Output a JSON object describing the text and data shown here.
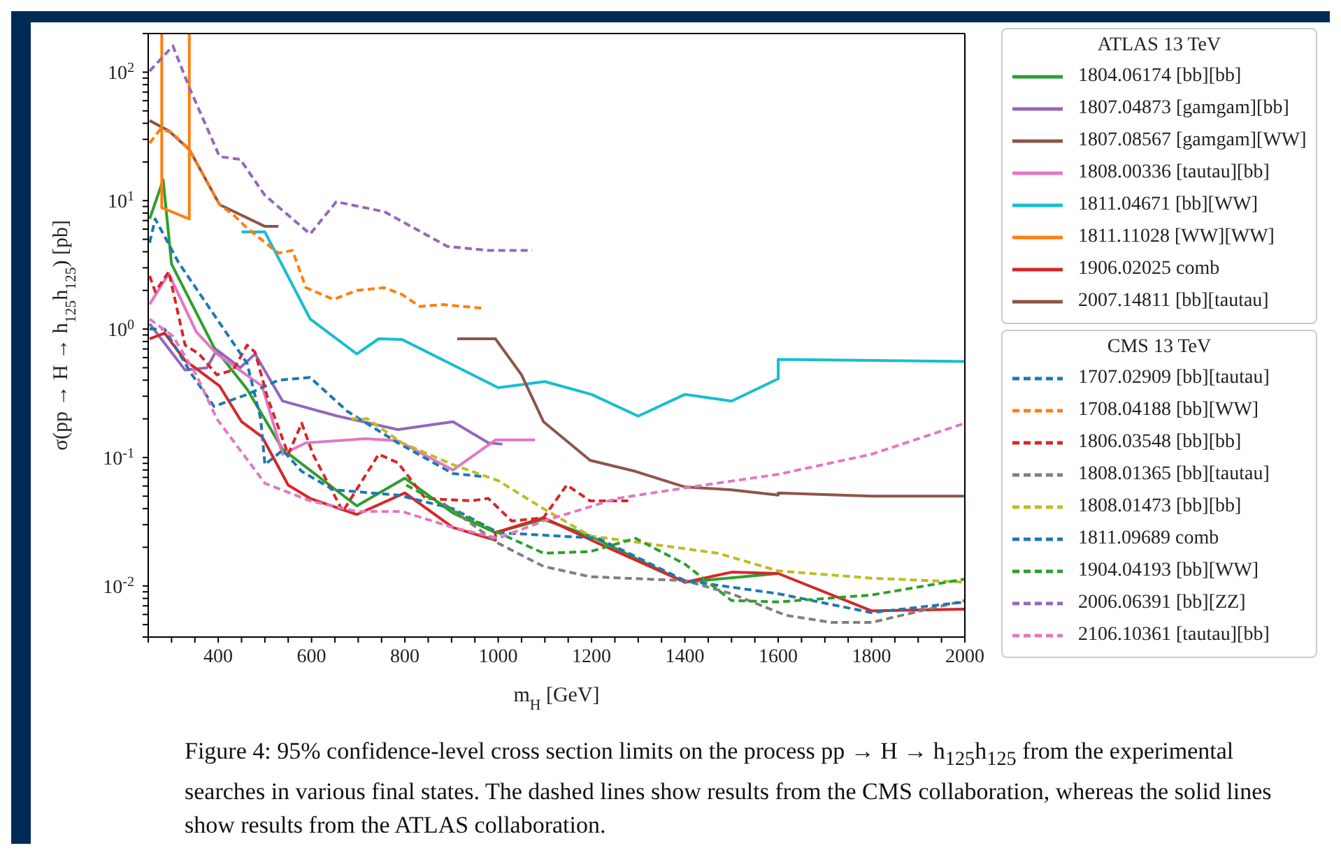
{
  "chart_data": {
    "type": "line",
    "xlabel": "m$_{H}$ [GeV]",
    "ylabel": "σ(pp → H → h$_{125}$h$_{125}$) [pb]",
    "log": "y",
    "marker": "none",
    "legend": "right",
    "legend_title": [
      "ATLAS 13 TeV",
      "CMS 13 TeV"
    ],
    "xlim": [
      250,
      2000
    ],
    "ylim": [
      0.004,
      200
    ],
    "xticks": [
      {
        "value": 250,
        "label": null
      },
      {
        "value": 300,
        "label": null
      },
      {
        "value": 350,
        "label": null
      },
      400,
      {
        "value": 450,
        "label": null
      },
      {
        "value": 500,
        "label": null
      },
      {
        "value": 550,
        "label": null
      },
      600,
      {
        "value": 650,
        "label": null
      },
      {
        "value": 700,
        "label": null
      },
      {
        "value": 750,
        "label": null
      },
      800,
      {
        "value": 850,
        "label": null
      },
      {
        "value": 900,
        "label": null
      },
      {
        "value": 950,
        "label": null
      },
      1000,
      {
        "value": 1050,
        "label": null
      },
      {
        "value": 1100,
        "label": null
      },
      {
        "value": 1150,
        "label": null
      },
      1200,
      {
        "value": 1250,
        "label": null
      },
      {
        "value": 1300,
        "label": null
      },
      {
        "value": 1350,
        "label": null
      },
      1400,
      {
        "value": 1450,
        "label": null
      },
      {
        "value": 1500,
        "label": null
      },
      {
        "value": 1550,
        "label": null
      },
      1600,
      {
        "value": 1650,
        "label": null
      },
      {
        "value": 1700,
        "label": null
      },
      {
        "value": 1750,
        "label": null
      },
      1800,
      {
        "value": 1850,
        "label": null
      },
      {
        "value": 1900,
        "label": null
      },
      {
        "value": 1950,
        "label": null
      },
      2000
    ],
    "yticks": [
      {
        "value": 0.004,
        "label": null
      },
      {
        "value": 0.005,
        "label": null
      },
      {
        "value": 0.006,
        "label": null
      },
      {
        "value": 0.007,
        "label": null
      },
      {
        "value": 0.008,
        "label": null
      },
      {
        "value": 0.009,
        "label": null
      },
      {
        "value": 0.01,
        "label": "10$^{-2}$"
      },
      {
        "value": 0.02,
        "label": null
      },
      {
        "value": 0.03,
        "label": null
      },
      {
        "value": 0.04,
        "label": null
      },
      {
        "value": 0.05,
        "label": null
      },
      {
        "value": 0.06,
        "label": null
      },
      {
        "value": 0.07,
        "label": null
      },
      {
        "value": 0.08,
        "label": null
      },
      {
        "value": 0.09,
        "label": null
      },
      {
        "value": 0.1,
        "label": "10$^{-1}$"
      },
      {
        "value": 0.2,
        "label": null
      },
      {
        "value": 0.3,
        "label": null
      },
      {
        "value": 0.4,
        "label": null
      },
      {
        "value": 0.5,
        "label": null
      },
      {
        "value": 0.6,
        "label": null
      },
      {
        "value": 0.7,
        "label": null
      },
      {
        "value": 0.8,
        "label": null
      },
      {
        "value": 0.9,
        "label": null
      },
      {
        "value": 1,
        "label": "10$^{0}$"
      },
      {
        "value": 2,
        "label": null
      },
      {
        "value": 3,
        "label": null
      },
      {
        "value": 4,
        "label": null
      },
      {
        "value": 5,
        "label": null
      },
      {
        "value": 6,
        "label": null
      },
      {
        "value": 7,
        "label": null
      },
      {
        "value": 8,
        "label": null
      },
      {
        "value": 9,
        "label": null
      },
      {
        "value": 10,
        "label": "10$^{1}$"
      },
      {
        "value": 20,
        "label": null
      },
      {
        "value": 30,
        "label": null
      },
      {
        "value": 40,
        "label": null
      },
      {
        "value": 50,
        "label": null
      },
      {
        "value": 60,
        "label": null
      },
      {
        "value": 70,
        "label": null
      },
      {
        "value": 80,
        "label": null
      },
      {
        "value": 90,
        "label": null
      },
      {
        "value": 100,
        "label": "10$^{2}$"
      },
      {
        "value": 200,
        "label": null
      }
    ],
    "series": [
      {
        "name": "1804.06174 [bb][bb]",
        "color": "#2ca02c",
        "line_style": "solid",
        "x": [
          253,
          282,
          300,
          391,
          462,
          538,
          697,
          800,
          903,
          994,
          1097,
          1197,
          1400,
          1600
        ],
        "values": [
          7.2,
          14.5,
          3.2,
          0.72,
          0.34,
          0.116,
          0.042,
          0.069,
          0.037,
          0.026,
          0.033,
          0.0245,
          0.0107,
          0.0125
        ]
      },
      {
        "name": "1807.04873 [gamgam][bb]",
        "color": "#9467bd",
        "line_style": "solid",
        "x": [
          253,
          329,
          376,
          397,
          447,
          479,
          538,
          656,
          785,
          903,
          979,
          1009
        ],
        "values": [
          1.1,
          0.48,
          0.5,
          0.69,
          0.5,
          0.64,
          0.275,
          0.21,
          0.165,
          0.19,
          0.13,
          0.127
        ]
      },
      {
        "name": "1807.08567 [gamgam][WW]",
        "color": "#8c564b",
        "line_style": "solid",
        "x": [
          253,
          294,
          338,
          403,
          500,
          529
        ],
        "values": [
          42,
          35,
          25,
          9.3,
          6.3,
          6.3
        ]
      },
      {
        "name": "1808.00336 [tautau][bb]",
        "color": "#e377c2",
        "line_style": "solid",
        "x": [
          253,
          294,
          353,
          397,
          494,
          538,
          588,
          715,
          785,
          903,
          994,
          1079
        ],
        "values": [
          1.56,
          2.7,
          0.95,
          0.64,
          0.36,
          0.106,
          0.13,
          0.14,
          0.135,
          0.08,
          0.137,
          0.137
        ]
      },
      {
        "name": "1811.04671 [bb][WW]",
        "color": "#17becf",
        "line_style": "solid",
        "x": [
          450,
          500,
          597,
          697,
          744,
          794,
          1000,
          1100,
          1200,
          1300,
          1400,
          1500,
          1600,
          1600,
          2000
        ],
        "values": [
          5.7,
          5.7,
          1.2,
          0.64,
          0.84,
          0.83,
          0.35,
          0.39,
          0.31,
          0.21,
          0.31,
          0.275,
          0.41,
          0.58,
          0.56
        ]
      },
      {
        "name": "1811.11028 [WW][WW]",
        "color": "#ff7f0e",
        "line_style": "solid",
        "x": [
          279,
          279,
          338,
          338
        ],
        "values": [
          200,
          8.8,
          7.2,
          200
        ]
      },
      {
        "name": "1906.02025 comb",
        "color": "#d62728",
        "line_style": "solid",
        "x": [
          253,
          285,
          329,
          403,
          450,
          494,
          550,
          597,
          697,
          800,
          903,
          994,
          994,
          1097,
          1214,
          1400,
          1500,
          1600,
          1800,
          2000
        ],
        "values": [
          0.84,
          0.93,
          0.57,
          0.36,
          0.19,
          0.145,
          0.061,
          0.048,
          0.036,
          0.053,
          0.0285,
          0.0227,
          0.026,
          0.034,
          0.0215,
          0.0107,
          0.0128,
          0.0125,
          0.0064,
          0.0066
        ]
      },
      {
        "name": "2007.14811 [bb][tautau]",
        "color": "#8c564b",
        "line_style": "solid",
        "x": [
          912,
          994,
          1050,
          1097,
          1197,
          1294,
          1400,
          1500,
          1600,
          1600,
          1800,
          2000
        ],
        "values": [
          0.84,
          0.84,
          0.44,
          0.19,
          0.095,
          0.078,
          0.059,
          0.056,
          0.051,
          0.053,
          0.05,
          0.05
        ]
      },
      {
        "name": "1707.02909 [bb][tautau]",
        "color": "#1f77b4",
        "line_style": "dashed",
        "x": [
          253,
          285,
          344,
          391,
          462,
          529,
          597,
          676,
          785,
          903,
          970
        ],
        "values": [
          1.0,
          1.0,
          0.44,
          0.25,
          0.31,
          0.4,
          0.42,
          0.23,
          0.13,
          0.075,
          0.071
        ]
      },
      {
        "name": "1708.04188 [bb][WW]",
        "color": "#ff7f0e",
        "line_style": "dashed",
        "x": [
          253,
          276,
          300,
          338,
          403,
          435,
          462,
          529,
          559,
          588,
          647,
          697,
          756,
          794,
          832,
          882,
          970
        ],
        "values": [
          28,
          36,
          34,
          25,
          9.3,
          7.6,
          6.1,
          3.9,
          4.1,
          2.1,
          1.7,
          2.0,
          2.1,
          1.86,
          1.5,
          1.55,
          1.45
        ]
      },
      {
        "name": "1806.03548 [bb][bb]",
        "color": "#d62728",
        "line_style": "dashed",
        "x": [
          253,
          265,
          294,
          329,
          359,
          397,
          432,
          462,
          479,
          506,
          550,
          579,
          603,
          667,
          744,
          785,
          844,
          941,
          979,
          1029,
          1097,
          1147,
          1197,
          1288
        ],
        "values": [
          2.6,
          1.95,
          2.8,
          0.75,
          0.64,
          0.44,
          0.48,
          0.75,
          0.66,
          0.29,
          0.106,
          0.185,
          0.106,
          0.038,
          0.106,
          0.091,
          0.048,
          0.046,
          0.048,
          0.032,
          0.034,
          0.061,
          0.046,
          0.046
        ]
      },
      {
        "name": "1808.01365 [bb][tautau]",
        "color": "#7f7f7f",
        "line_style": "dashed",
        "x": [
          882,
          1000,
          1097,
          1197,
          1400,
          1500,
          1617,
          1714,
          1800,
          2000
        ],
        "values": [
          0.044,
          0.0215,
          0.0142,
          0.0118,
          0.011,
          0.0087,
          0.0059,
          0.0052,
          0.0052,
          0.0077
        ]
      },
      {
        "name": "1808.01473 [bb][bb]",
        "color": "#bcbd22",
        "line_style": "dashed",
        "x": [
          685,
          720,
          794,
          903,
          1000,
          1097,
          1197,
          1314,
          1470,
          1600,
          1800,
          2000
        ],
        "values": [
          0.2,
          0.2,
          0.13,
          0.088,
          0.066,
          0.04,
          0.0245,
          0.0215,
          0.018,
          0.0131,
          0.0115,
          0.0107
        ]
      },
      {
        "name": "1811.09689 comb",
        "color": "#1f77b4",
        "line_style": "dashed",
        "x": [
          253,
          265,
          315,
          397,
          462,
          491,
          500,
          538,
          579,
          647,
          785,
          903,
          1000,
          1214,
          1400,
          1600,
          1800,
          2000
        ],
        "values": [
          4.7,
          7.2,
          3.3,
          1.2,
          0.54,
          0.2,
          0.088,
          0.114,
          0.078,
          0.056,
          0.051,
          0.04,
          0.026,
          0.0235,
          0.011,
          0.0087,
          0.0062,
          0.0075
        ]
      },
      {
        "name": "1904.04193 [bb][WW]",
        "color": "#2ca02c",
        "line_style": "dashed",
        "x": [
          803,
          903,
          1000,
          1097,
          1197,
          1294,
          1400,
          1500,
          1600,
          1800,
          2000
        ],
        "values": [
          0.061,
          0.0387,
          0.026,
          0.018,
          0.0185,
          0.0235,
          0.0148,
          0.0077,
          0.0075,
          0.0085,
          0.0113
        ]
      },
      {
        "name": "2006.06391 [bb][ZZ]",
        "color": "#9467bd",
        "line_style": "dashed",
        "x": [
          253,
          303,
          338,
          403,
          447,
          500,
          597,
          653,
          756,
          891,
          979,
          1073
        ],
        "values": [
          102,
          160,
          76,
          22,
          21,
          11,
          5.5,
          9.8,
          8.2,
          4.4,
          4.1,
          4.1
        ]
      },
      {
        "name": "2106.10361 [tautau][bb]",
        "color": "#e377c2",
        "line_style": "dashed",
        "x": [
          253,
          303,
          353,
          397,
          500,
          597,
          697,
          794,
          903,
          1000,
          1097,
          1255,
          1400,
          1600,
          1800,
          2000
        ],
        "values": [
          1.2,
          0.88,
          0.44,
          0.2,
          0.063,
          0.046,
          0.038,
          0.038,
          0.0285,
          0.0235,
          0.032,
          0.048,
          0.058,
          0.074,
          0.106,
          0.185
        ]
      }
    ],
    "annotations": [
      "Figure 4: 95% confidence-level cross section limits on the process pp → H → h$_{125}$h$_{125}$ from the experimental searches in various final states. The dashed lines show results from the CMS collaboration, whereas the solid lines show results from the ATLAS collaboration."
    ]
  }
}
